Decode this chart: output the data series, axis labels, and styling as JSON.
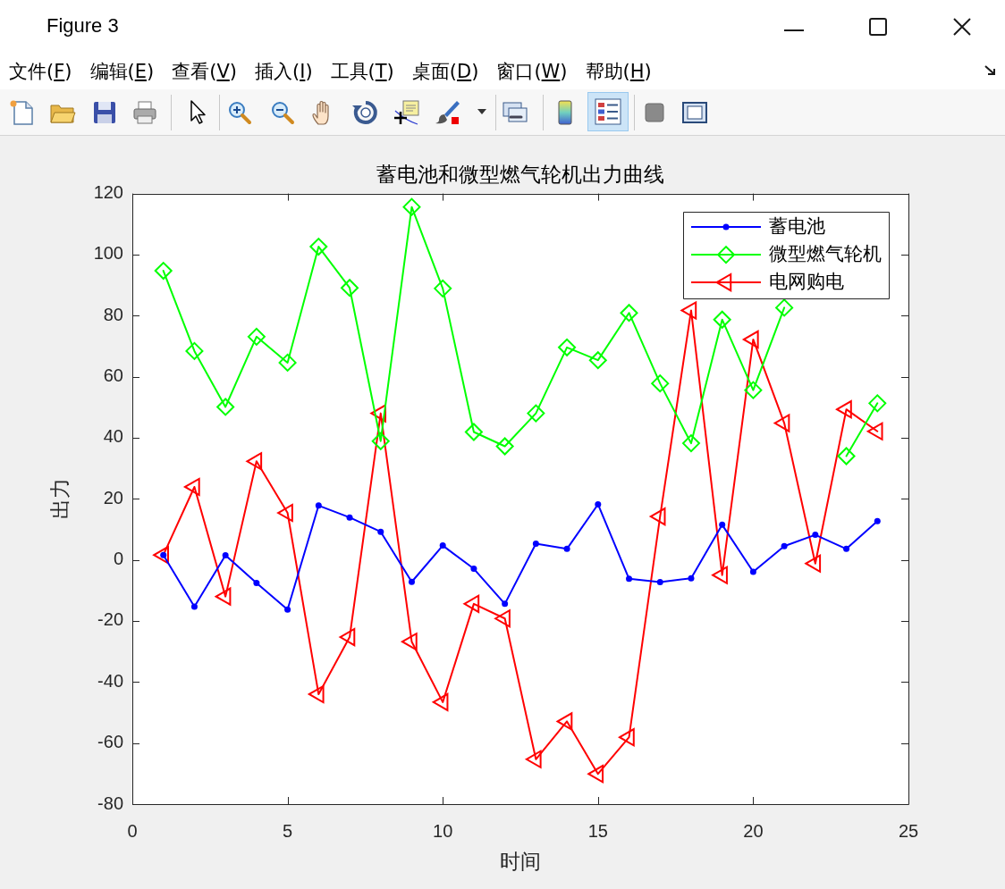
{
  "chart_data": {
    "type": "line",
    "title": "蓄电池和微型燃气轮机出力曲线",
    "xlabel": "时间",
    "ylabel": "出力",
    "x": [
      1,
      2,
      3,
      4,
      5,
      6,
      7,
      8,
      9,
      10,
      11,
      12,
      13,
      14,
      15,
      16,
      17,
      18,
      19,
      20,
      21,
      22,
      23,
      24
    ],
    "series": [
      {
        "name": "蓄电池",
        "color": "#0000ff",
        "marker": "circle",
        "values": [
          1.6,
          -15.3,
          1.5,
          -7.6,
          -16.3,
          17.8,
          13.9,
          9.2,
          -7.2,
          4.7,
          -2.9,
          -14.4,
          5.3,
          3.6,
          18.2,
          -6.2,
          -7.3,
          -6.0,
          11.5,
          -3.9,
          4.5,
          8.2,
          3.6,
          12.7
        ]
      },
      {
        "name": "微型燃气轮机",
        "color": "#00ff00",
        "marker": "diamond",
        "values": [
          94.7,
          68.4,
          50.1,
          73.1,
          64.6,
          102.6,
          89.1,
          38.9,
          115.6,
          88.9,
          41.9,
          37.2,
          48.0,
          69.6,
          65.4,
          80.9,
          57.8,
          38.2,
          78.7,
          55.6,
          82.6,
          null,
          34.0,
          51.3
        ]
      },
      {
        "name": "电网购电",
        "color": "#ff0000",
        "marker": "triangle",
        "values": [
          1.6,
          23.9,
          -12.0,
          32.3,
          15.4,
          -44.0,
          -25.3,
          48.0,
          -26.8,
          -46.6,
          -14.4,
          -19.2,
          -65.3,
          -52.9,
          -70.1,
          -58.1,
          14.2,
          81.7,
          -5.0,
          72.2,
          44.8,
          -1.2,
          49.3,
          42.1
        ]
      }
    ],
    "xlim": [
      0,
      25
    ],
    "xticks": [
      0,
      5,
      10,
      15,
      20,
      25
    ],
    "ylim": [
      -80,
      120
    ],
    "yticks": [
      -80,
      -60,
      -40,
      -20,
      0,
      20,
      40,
      60,
      80,
      100,
      120
    ],
    "legend": "top right",
    "line_style": "solid",
    "annotations": [
      "Figure 3",
      "文件(F)",
      "编辑(E)",
      "查看(V)",
      "插入(I)",
      "工具(T)",
      "桌面(D)",
      "窗口(W)",
      "帮助(H)"
    ]
  }
}
